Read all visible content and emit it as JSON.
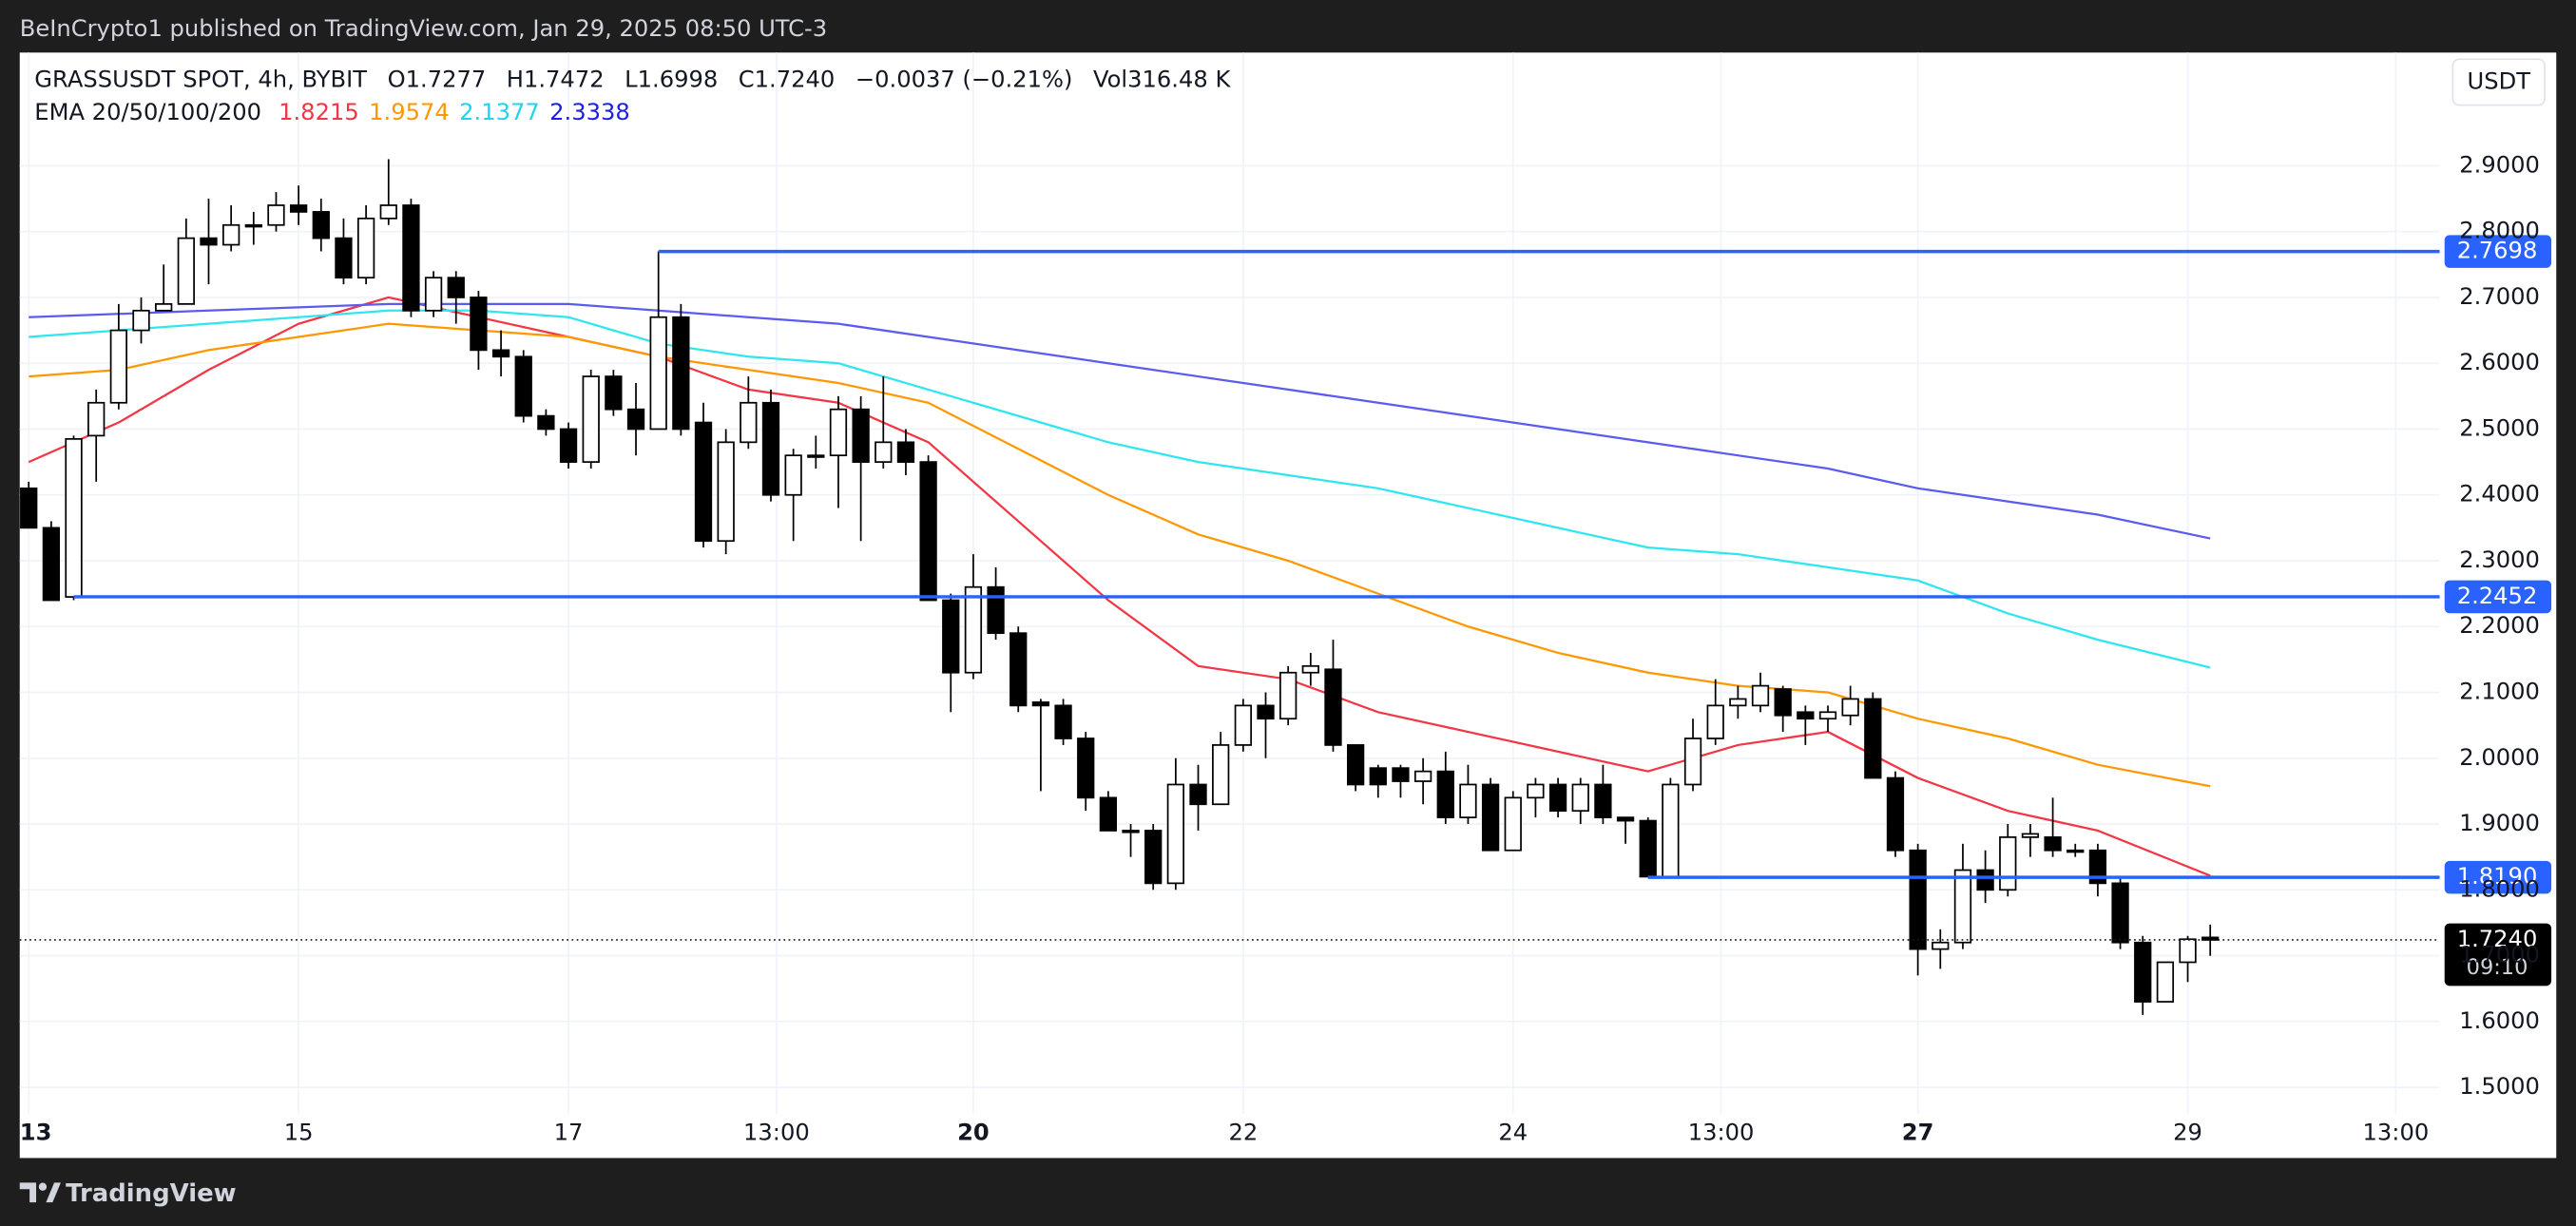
{
  "header": {
    "published": "BeInCrypto1 published on TradingView.com, Jan 29, 2025 08:50 UTC-3",
    "brand": "TradingView",
    "currency": "USDT"
  },
  "chart_data": {
    "type": "candlestick",
    "symbol": "GRASSUSDT SPOT, 4h, BYBIT",
    "ohlc_text": [
      "O1.7277",
      "H1.7472",
      "L1.6998",
      "C1.7240",
      "−0.0037 (−0.21%)",
      "Vol316.48 K"
    ],
    "open": [
      2.41,
      2.35,
      2.245,
      2.49,
      2.54,
      2.65,
      2.68,
      2.69,
      2.79,
      2.78,
      2.81,
      2.81,
      2.84,
      2.83,
      2.79,
      2.73,
      2.82,
      2.84,
      2.68,
      2.73,
      2.7,
      2.62,
      2.61,
      2.52,
      2.5,
      2.45,
      2.58,
      2.53,
      2.5,
      2.67,
      2.51,
      2.33,
      2.48,
      2.54,
      2.4,
      2.46,
      2.46,
      2.53,
      2.45,
      2.48,
      2.45,
      2.24,
      2.13,
      2.26,
      2.19,
      2.085,
      2.08,
      2.03,
      1.94,
      1.89,
      1.89,
      1.81,
      1.96,
      1.93,
      2.02,
      2.08,
      2.06,
      2.13,
      2.135,
      2.02,
      1.985,
      1.985,
      1.965,
      1.98,
      1.91,
      1.96,
      1.86,
      1.94,
      1.96,
      1.92,
      1.96,
      1.91,
      1.905,
      1.82,
      1.96,
      2.03,
      2.08,
      2.08,
      2.105,
      2.07,
      2.06,
      2.065,
      2.09,
      1.97,
      1.86,
      1.71,
      1.72,
      1.83,
      1.8,
      1.88,
      1.88,
      1.86,
      1.86,
      1.81,
      1.72,
      1.63,
      1.69,
      1.7277
    ],
    "high": [
      2.42,
      2.36,
      2.49,
      2.56,
      2.69,
      2.7,
      2.75,
      2.82,
      2.85,
      2.84,
      2.83,
      2.86,
      2.87,
      2.85,
      2.82,
      2.84,
      2.91,
      2.85,
      2.74,
      2.74,
      2.71,
      2.65,
      2.62,
      2.53,
      2.51,
      2.59,
      2.59,
      2.57,
      2.77,
      2.69,
      2.54,
      2.5,
      2.58,
      2.56,
      2.47,
      2.49,
      2.55,
      2.55,
      2.58,
      2.5,
      2.46,
      2.25,
      2.31,
      2.29,
      2.2,
      2.09,
      2.09,
      2.04,
      1.95,
      1.9,
      1.9,
      2.0,
      1.99,
      2.04,
      2.09,
      2.1,
      2.14,
      2.16,
      2.18,
      2.02,
      1.99,
      1.99,
      2.0,
      2.01,
      1.99,
      1.97,
      1.95,
      1.97,
      1.97,
      1.97,
      1.99,
      1.91,
      1.91,
      1.97,
      2.06,
      2.12,
      2.11,
      2.13,
      2.11,
      2.08,
      2.08,
      2.11,
      2.1,
      1.98,
      1.87,
      1.74,
      1.87,
      1.86,
      1.9,
      1.9,
      1.94,
      1.87,
      1.87,
      1.82,
      1.73,
      1.69,
      1.73,
      1.7472
    ],
    "low": [
      2.35,
      2.24,
      2.24,
      2.42,
      2.53,
      2.63,
      2.68,
      2.69,
      2.72,
      2.77,
      2.78,
      2.8,
      2.81,
      2.77,
      2.72,
      2.72,
      2.81,
      2.67,
      2.67,
      2.66,
      2.59,
      2.58,
      2.51,
      2.49,
      2.44,
      2.44,
      2.52,
      2.46,
      2.5,
      2.49,
      2.32,
      2.31,
      2.47,
      2.39,
      2.33,
      2.44,
      2.38,
      2.33,
      2.44,
      2.43,
      2.24,
      2.07,
      2.12,
      2.18,
      2.07,
      1.95,
      2.02,
      1.92,
      1.89,
      1.85,
      1.8,
      1.8,
      1.89,
      1.93,
      2.01,
      2.0,
      2.05,
      2.11,
      2.01,
      1.95,
      1.94,
      1.94,
      1.93,
      1.9,
      1.9,
      1.86,
      1.86,
      1.91,
      1.91,
      1.9,
      1.9,
      1.87,
      1.82,
      1.82,
      1.95,
      2.02,
      2.06,
      2.07,
      2.04,
      2.02,
      2.04,
      2.05,
      1.97,
      1.85,
      1.67,
      1.68,
      1.71,
      1.78,
      1.79,
      1.85,
      1.85,
      1.85,
      1.79,
      1.71,
      1.61,
      1.63,
      1.66,
      1.6998
    ],
    "close": [
      2.35,
      2.24,
      2.485,
      2.54,
      2.65,
      2.68,
      2.69,
      2.79,
      2.78,
      2.81,
      2.81,
      2.84,
      2.83,
      2.79,
      2.73,
      2.82,
      2.84,
      2.68,
      2.73,
      2.7,
      2.62,
      2.61,
      2.52,
      2.5,
      2.45,
      2.58,
      2.53,
      2.5,
      2.67,
      2.5,
      2.33,
      2.48,
      2.54,
      2.4,
      2.46,
      2.46,
      2.53,
      2.45,
      2.48,
      2.45,
      2.24,
      2.13,
      2.26,
      2.19,
      2.08,
      2.08,
      2.03,
      1.94,
      1.89,
      1.89,
      1.81,
      1.96,
      1.93,
      2.02,
      2.08,
      2.06,
      2.13,
      2.14,
      2.02,
      1.96,
      1.96,
      1.965,
      1.98,
      1.91,
      1.96,
      1.86,
      1.94,
      1.96,
      1.92,
      1.96,
      1.91,
      1.905,
      1.82,
      1.96,
      2.03,
      2.08,
      2.09,
      2.11,
      2.065,
      2.06,
      2.07,
      2.09,
      1.97,
      1.86,
      1.71,
      1.72,
      1.83,
      1.8,
      1.88,
      1.885,
      1.86,
      1.86,
      1.81,
      1.72,
      1.63,
      1.69,
      1.725,
      1.724
    ],
    "up_color": "#ffffff",
    "down_color": "#000000",
    "ema_title": "EMA 20/50/100/200",
    "ema_x": [
      0,
      4,
      8,
      12,
      16,
      20,
      24,
      28,
      32,
      36,
      40,
      44,
      48,
      52,
      56,
      60,
      64,
      68,
      72,
      76,
      80,
      84,
      88,
      92,
      97
    ],
    "ema": [
      {
        "color": "#f23645",
        "values": [
          2.45,
          2.51,
          2.59,
          2.66,
          2.7,
          2.67,
          2.64,
          2.61,
          2.56,
          2.54,
          2.48,
          2.36,
          2.24,
          2.14,
          2.12,
          2.07,
          2.04,
          2.01,
          1.98,
          2.02,
          2.04,
          1.97,
          1.92,
          1.89,
          1.8215
        ]
      },
      {
        "color": "#ff9800",
        "values": [
          2.58,
          2.59,
          2.62,
          2.64,
          2.66,
          2.65,
          2.64,
          2.61,
          2.59,
          2.57,
          2.54,
          2.47,
          2.4,
          2.34,
          2.3,
          2.25,
          2.2,
          2.16,
          2.13,
          2.11,
          2.1,
          2.06,
          2.03,
          1.99,
          1.9574
        ]
      },
      {
        "color": "#2ee6f0",
        "values": [
          2.64,
          2.65,
          2.66,
          2.67,
          2.68,
          2.68,
          2.67,
          2.63,
          2.61,
          2.6,
          2.56,
          2.52,
          2.48,
          2.45,
          2.43,
          2.41,
          2.38,
          2.35,
          2.32,
          2.31,
          2.29,
          2.27,
          2.22,
          2.18,
          2.1377
        ]
      },
      {
        "color": "#5b5bf0",
        "values": [
          2.67,
          2.675,
          2.68,
          2.685,
          2.69,
          2.69,
          2.69,
          2.68,
          2.67,
          2.66,
          2.64,
          2.62,
          2.6,
          2.58,
          2.56,
          2.54,
          2.52,
          2.5,
          2.48,
          2.46,
          2.44,
          2.41,
          2.39,
          2.37,
          2.3338
        ]
      }
    ],
    "ema_label_colors": [
      "#f23645",
      "#ff9800",
      "#22d3ee",
      "#1e1ee8"
    ],
    "levels": [
      {
        "value": 2.7698,
        "label": "2.7698",
        "start": 28
      },
      {
        "value": 2.2452,
        "label": "2.2452",
        "start": 2
      },
      {
        "value": 1.819,
        "label": "1.8190",
        "start": 72
      }
    ],
    "level_color": "#2962ff",
    "last_price": {
      "value": 1.724,
      "label": "1.7240",
      "countdown": "09:10"
    },
    "xlim": [
      -0.4,
      107.2
    ],
    "xticks": [
      {
        "value": 0,
        "label": "13",
        "bold": true
      },
      {
        "value": 12,
        "label": "15"
      },
      {
        "value": 24,
        "label": "17"
      },
      {
        "value": 33.25,
        "label": "13:00"
      },
      {
        "value": 42,
        "label": "20",
        "bold": true
      },
      {
        "value": 54,
        "label": "22"
      },
      {
        "value": 66,
        "label": "24"
      },
      {
        "value": 75.25,
        "label": "13:00"
      },
      {
        "value": 84,
        "label": "27",
        "bold": true
      },
      {
        "value": 96,
        "label": "29"
      },
      {
        "value": 105.25,
        "label": "13:00"
      }
    ],
    "ylim": [
      1.46,
      3.072
    ],
    "yticks": [
      {
        "value": 1.5,
        "label": "1.5000"
      },
      {
        "value": 1.6,
        "label": "1.6000"
      },
      {
        "value": 1.7,
        "label": "1.7000"
      },
      {
        "value": 1.8,
        "label": "1.8000"
      },
      {
        "value": 1.9,
        "label": "1.9000"
      },
      {
        "value": 2.0,
        "label": "2.0000"
      },
      {
        "value": 2.1,
        "label": "2.1000"
      },
      {
        "value": 2.2,
        "label": "2.2000"
      },
      {
        "value": 2.3,
        "label": "2.3000"
      },
      {
        "value": 2.4,
        "label": "2.4000"
      },
      {
        "value": 2.5,
        "label": "2.5000"
      },
      {
        "value": 2.6,
        "label": "2.6000"
      },
      {
        "value": 2.7,
        "label": "2.7000"
      },
      {
        "value": 2.8,
        "label": "2.8000"
      },
      {
        "value": 2.9,
        "label": "2.9000"
      }
    ],
    "grid": true
  }
}
